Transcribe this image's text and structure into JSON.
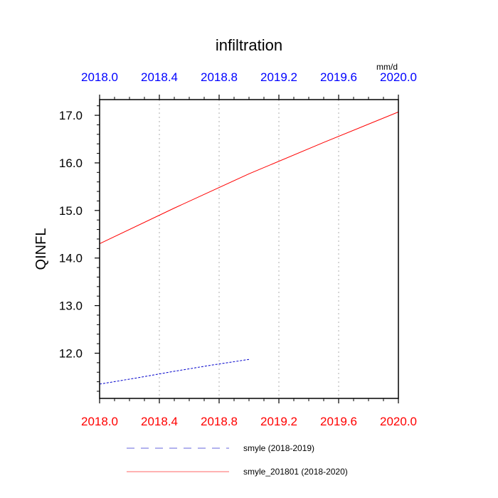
{
  "chart_data": {
    "type": "line",
    "title": "infiltration",
    "units": "mm/d",
    "ylabel": "QINFL",
    "xlabel": "",
    "xlim": [
      2018.0,
      2020.0
    ],
    "ylim": [
      11.05,
      17.33
    ],
    "x_ticks": [
      "2018.0",
      "2018.4",
      "2018.8",
      "2019.2",
      "2019.6",
      "2020.0"
    ],
    "x_tick_values": [
      2018.0,
      2018.4,
      2018.8,
      2019.2,
      2019.6,
      2020.0
    ],
    "y_ticks": [
      "12.0",
      "13.0",
      "14.0",
      "15.0",
      "16.0",
      "17.0"
    ],
    "y_tick_values": [
      12.0,
      13.0,
      14.0,
      15.0,
      16.0,
      17.0
    ],
    "top_axis_color": "#0000ff",
    "bottom_axis_color": "#ff0000",
    "grid": "vertical dotted at top-axis ticks",
    "legend_position": "bottom",
    "series": [
      {
        "name": "smyle (2018-2019)",
        "color": "#0000cc",
        "style": "dashed",
        "x": [
          2018.0,
          2018.25,
          2018.5,
          2018.75,
          2019.0
        ],
        "y": [
          11.35,
          11.48,
          11.62,
          11.75,
          11.87
        ]
      },
      {
        "name": "smyle_201801 (2018-2020)",
        "color": "#ff0000",
        "style": "solid",
        "x": [
          2018.0,
          2018.5,
          2019.0,
          2019.5,
          2020.0
        ],
        "y": [
          14.3,
          15.05,
          15.77,
          16.43,
          17.07
        ]
      }
    ]
  }
}
